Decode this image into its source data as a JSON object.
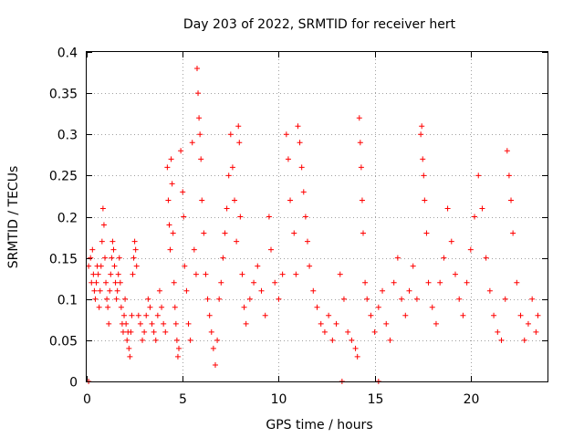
{
  "chart_data": {
    "type": "scatter",
    "title": "Day 203 of 2022, SRMTID for receiver hert",
    "xlabel": "GPS time / hours",
    "ylabel": "SRMTID / TECUs",
    "xlim": [
      0,
      24
    ],
    "ylim": [
      0,
      0.4
    ],
    "xticks": [
      0,
      5,
      10,
      15,
      20
    ],
    "yticks": [
      0,
      0.05,
      0.1,
      0.15,
      0.2,
      0.25,
      0.3,
      0.35,
      0.4
    ],
    "xtick_labels": [
      "0",
      "5",
      "10",
      "15",
      "20"
    ],
    "ytick_labels": [
      "0",
      "0.05",
      "0.1",
      "0.15",
      "0.2",
      "0.25",
      "0.3",
      "0.35",
      "0.4"
    ],
    "grid": true,
    "marker": "+",
    "color": "#ff0000",
    "series": [
      {
        "name": "SRMTID",
        "points": [
          [
            0.1,
            0.0
          ],
          [
            13.3,
            0.0
          ],
          [
            15.2,
            0.0
          ],
          [
            0.1,
            0.14
          ],
          [
            0.2,
            0.15
          ],
          [
            0.25,
            0.12
          ],
          [
            0.3,
            0.16
          ],
          [
            0.35,
            0.13
          ],
          [
            0.4,
            0.11
          ],
          [
            0.45,
            0.1
          ],
          [
            0.5,
            0.12
          ],
          [
            0.55,
            0.14
          ],
          [
            0.6,
            0.13
          ],
          [
            0.65,
            0.09
          ],
          [
            0.7,
            0.11
          ],
          [
            0.75,
            0.14
          ],
          [
            0.8,
            0.17
          ],
          [
            0.85,
            0.21
          ],
          [
            0.9,
            0.19
          ],
          [
            0.95,
            0.15
          ],
          [
            1.0,
            0.12
          ],
          [
            1.05,
            0.1
          ],
          [
            1.1,
            0.09
          ],
          [
            1.15,
            0.07
          ],
          [
            1.2,
            0.11
          ],
          [
            1.25,
            0.13
          ],
          [
            1.3,
            0.15
          ],
          [
            1.35,
            0.17
          ],
          [
            1.4,
            0.16
          ],
          [
            1.45,
            0.14
          ],
          [
            1.5,
            0.12
          ],
          [
            1.55,
            0.1
          ],
          [
            1.6,
            0.11
          ],
          [
            1.65,
            0.13
          ],
          [
            1.7,
            0.15
          ],
          [
            1.75,
            0.12
          ],
          [
            1.8,
            0.09
          ],
          [
            1.85,
            0.07
          ],
          [
            1.9,
            0.06
          ],
          [
            1.95,
            0.08
          ],
          [
            2.0,
            0.1
          ],
          [
            2.05,
            0.07
          ],
          [
            2.1,
            0.05
          ],
          [
            2.15,
            0.06
          ],
          [
            2.2,
            0.04
          ],
          [
            2.25,
            0.03
          ],
          [
            2.3,
            0.06
          ],
          [
            2.35,
            0.08
          ],
          [
            2.4,
            0.13
          ],
          [
            2.45,
            0.15
          ],
          [
            2.5,
            0.17
          ],
          [
            2.55,
            0.16
          ],
          [
            2.6,
            0.14
          ],
          [
            2.7,
            0.08
          ],
          [
            2.8,
            0.07
          ],
          [
            2.9,
            0.05
          ],
          [
            3.0,
            0.06
          ],
          [
            3.1,
            0.08
          ],
          [
            3.2,
            0.1
          ],
          [
            3.3,
            0.09
          ],
          [
            3.4,
            0.07
          ],
          [
            3.5,
            0.06
          ],
          [
            3.6,
            0.05
          ],
          [
            3.7,
            0.08
          ],
          [
            3.8,
            0.11
          ],
          [
            3.9,
            0.09
          ],
          [
            4.0,
            0.07
          ],
          [
            4.1,
            0.06
          ],
          [
            4.2,
            0.26
          ],
          [
            4.25,
            0.22
          ],
          [
            4.3,
            0.19
          ],
          [
            4.35,
            0.16
          ],
          [
            4.4,
            0.27
          ],
          [
            4.45,
            0.24
          ],
          [
            4.5,
            0.18
          ],
          [
            4.55,
            0.12
          ],
          [
            4.6,
            0.09
          ],
          [
            4.65,
            0.07
          ],
          [
            4.7,
            0.05
          ],
          [
            4.75,
            0.03
          ],
          [
            4.8,
            0.04
          ],
          [
            4.9,
            0.28
          ],
          [
            5.0,
            0.23
          ],
          [
            5.05,
            0.2
          ],
          [
            5.1,
            0.14
          ],
          [
            5.2,
            0.11
          ],
          [
            5.3,
            0.07
          ],
          [
            5.4,
            0.05
          ],
          [
            5.5,
            0.29
          ],
          [
            5.6,
            0.16
          ],
          [
            5.7,
            0.13
          ],
          [
            5.75,
            0.38
          ],
          [
            5.8,
            0.35
          ],
          [
            5.85,
            0.32
          ],
          [
            5.9,
            0.3
          ],
          [
            5.95,
            0.27
          ],
          [
            6.0,
            0.22
          ],
          [
            6.1,
            0.18
          ],
          [
            6.2,
            0.13
          ],
          [
            6.3,
            0.1
          ],
          [
            6.4,
            0.08
          ],
          [
            6.5,
            0.06
          ],
          [
            6.6,
            0.04
          ],
          [
            6.7,
            0.02
          ],
          [
            6.8,
            0.05
          ],
          [
            6.9,
            0.1
          ],
          [
            7.0,
            0.12
          ],
          [
            7.1,
            0.15
          ],
          [
            7.2,
            0.18
          ],
          [
            7.3,
            0.21
          ],
          [
            7.4,
            0.25
          ],
          [
            7.5,
            0.3
          ],
          [
            7.6,
            0.26
          ],
          [
            7.7,
            0.22
          ],
          [
            7.8,
            0.17
          ],
          [
            7.9,
            0.31
          ],
          [
            7.95,
            0.29
          ],
          [
            8.0,
            0.2
          ],
          [
            8.1,
            0.13
          ],
          [
            8.2,
            0.09
          ],
          [
            8.3,
            0.07
          ],
          [
            8.5,
            0.1
          ],
          [
            8.7,
            0.12
          ],
          [
            8.9,
            0.14
          ],
          [
            9.1,
            0.11
          ],
          [
            9.3,
            0.08
          ],
          [
            9.5,
            0.2
          ],
          [
            9.6,
            0.16
          ],
          [
            9.8,
            0.12
          ],
          [
            10.0,
            0.1
          ],
          [
            10.2,
            0.13
          ],
          [
            10.4,
            0.3
          ],
          [
            10.5,
            0.27
          ],
          [
            10.6,
            0.22
          ],
          [
            10.8,
            0.18
          ],
          [
            10.9,
            0.13
          ],
          [
            11.0,
            0.31
          ],
          [
            11.1,
            0.29
          ],
          [
            11.2,
            0.26
          ],
          [
            11.3,
            0.23
          ],
          [
            11.4,
            0.2
          ],
          [
            11.5,
            0.17
          ],
          [
            11.6,
            0.14
          ],
          [
            11.8,
            0.11
          ],
          [
            12.0,
            0.09
          ],
          [
            12.2,
            0.07
          ],
          [
            12.4,
            0.06
          ],
          [
            12.6,
            0.08
          ],
          [
            12.8,
            0.05
          ],
          [
            13.0,
            0.07
          ],
          [
            13.2,
            0.13
          ],
          [
            13.4,
            0.1
          ],
          [
            13.6,
            0.06
          ],
          [
            13.8,
            0.05
          ],
          [
            14.0,
            0.04
          ],
          [
            14.1,
            0.03
          ],
          [
            14.2,
            0.32
          ],
          [
            14.25,
            0.29
          ],
          [
            14.3,
            0.26
          ],
          [
            14.35,
            0.22
          ],
          [
            14.4,
            0.18
          ],
          [
            14.5,
            0.12
          ],
          [
            14.6,
            0.1
          ],
          [
            14.8,
            0.08
          ],
          [
            15.0,
            0.06
          ],
          [
            15.2,
            0.09
          ],
          [
            15.4,
            0.11
          ],
          [
            15.6,
            0.07
          ],
          [
            15.8,
            0.05
          ],
          [
            16.0,
            0.12
          ],
          [
            16.2,
            0.15
          ],
          [
            16.4,
            0.1
          ],
          [
            16.6,
            0.08
          ],
          [
            16.8,
            0.11
          ],
          [
            17.0,
            0.14
          ],
          [
            17.2,
            0.1
          ],
          [
            17.4,
            0.3
          ],
          [
            17.45,
            0.31
          ],
          [
            17.5,
            0.27
          ],
          [
            17.55,
            0.25
          ],
          [
            17.6,
            0.22
          ],
          [
            17.7,
            0.18
          ],
          [
            17.8,
            0.12
          ],
          [
            18.0,
            0.09
          ],
          [
            18.2,
            0.07
          ],
          [
            18.4,
            0.12
          ],
          [
            18.6,
            0.15
          ],
          [
            18.8,
            0.21
          ],
          [
            19.0,
            0.17
          ],
          [
            19.2,
            0.13
          ],
          [
            19.4,
            0.1
          ],
          [
            19.6,
            0.08
          ],
          [
            19.8,
            0.12
          ],
          [
            20.0,
            0.16
          ],
          [
            20.2,
            0.2
          ],
          [
            20.4,
            0.25
          ],
          [
            20.6,
            0.21
          ],
          [
            20.8,
            0.15
          ],
          [
            21.0,
            0.11
          ],
          [
            21.2,
            0.08
          ],
          [
            21.4,
            0.06
          ],
          [
            21.6,
            0.05
          ],
          [
            21.8,
            0.1
          ],
          [
            21.9,
            0.28
          ],
          [
            22.0,
            0.25
          ],
          [
            22.1,
            0.22
          ],
          [
            22.2,
            0.18
          ],
          [
            22.4,
            0.12
          ],
          [
            22.6,
            0.08
          ],
          [
            22.8,
            0.05
          ],
          [
            23.0,
            0.07
          ],
          [
            23.2,
            0.1
          ],
          [
            23.4,
            0.06
          ],
          [
            23.5,
            0.08
          ]
        ]
      }
    ]
  }
}
